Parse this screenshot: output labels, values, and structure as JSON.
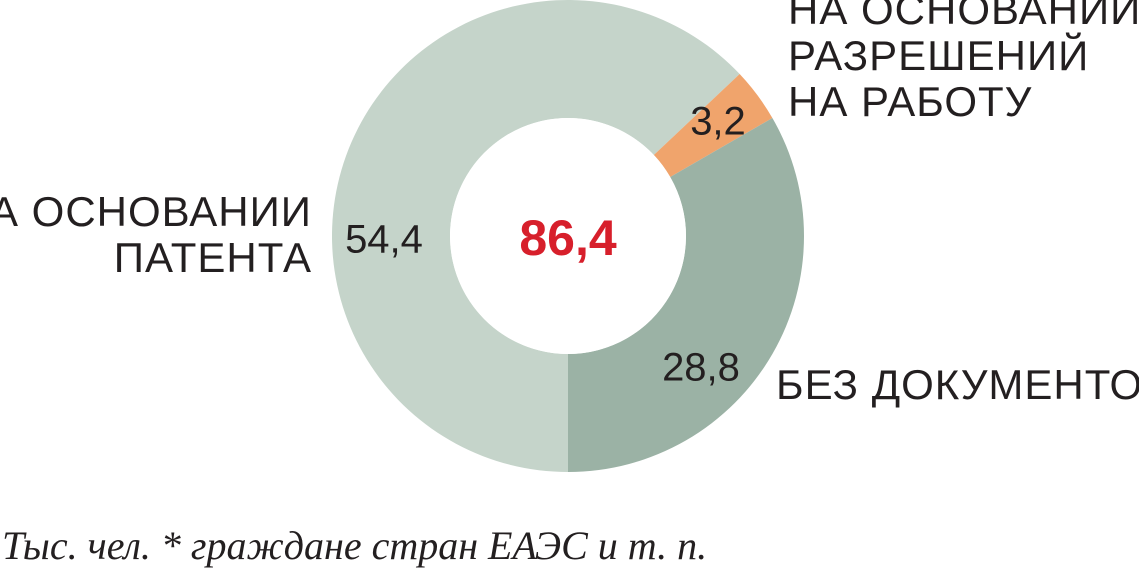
{
  "chart_data": {
    "type": "pie",
    "center_value": "86,4",
    "total": 86.4,
    "segments": [
      {
        "id": "patent",
        "value": 54.4,
        "value_label": "54,4",
        "label_lines": [
          "НА ОСНОВАНИИ",
          "ПАТЕНТА"
        ],
        "color": "#c5d4ca"
      },
      {
        "id": "permits",
        "value": 3.2,
        "value_label": "3,2",
        "label_lines": [
          "НА ОСНОВАНИИ",
          "РАЗРЕШЕНИЙ",
          "НА РАБОТУ"
        ],
        "color": "#f0a46c"
      },
      {
        "id": "no-docs",
        "value": 28.8,
        "value_label": "28,8",
        "label_lines": [
          "БЕЗ ДОКУМЕНТОВ*"
        ],
        "color": "#9bb2a5"
      }
    ],
    "footnote": "Тыс. чел. * граждане стран ЕАЭС и т. п."
  },
  "colors": {
    "center_value": "#d71f2b",
    "text": "#231f20"
  }
}
